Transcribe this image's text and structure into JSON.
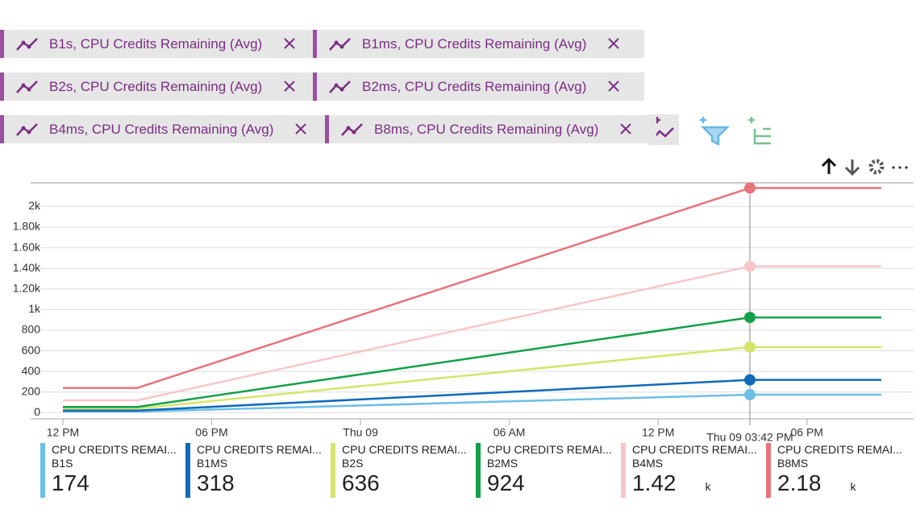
{
  "chips": [
    "B1s, CPU Credits Remaining (Avg)",
    "B1ms, CPU Credits Remaining (Avg)",
    "B2s, CPU Credits Remaining (Avg)",
    "B2ms, CPU Credits Remaining (Avg)",
    "B4ms, CPU Credits Remaining (Avg)",
    "B8ms, CPU Credits Remaining (Avg)"
  ],
  "chart_data": {
    "type": "line",
    "x": [
      0,
      3,
      27.7,
      33
    ],
    "xlim": [
      -1.3,
      34.3
    ],
    "xticks": [
      {
        "value": 0,
        "label": "12 PM"
      },
      {
        "value": 6,
        "label": "06 PM"
      },
      {
        "value": 12,
        "label": "Thu 09"
      },
      {
        "value": 18,
        "label": "06 AM"
      },
      {
        "value": 24,
        "label": "12 PM"
      },
      {
        "value": 30,
        "label": "06 PM"
      }
    ],
    "ylim": [
      -60,
      2230
    ],
    "yticks": [
      0,
      200,
      400,
      600,
      800,
      {
        "value": 1000,
        "label": "1k"
      },
      {
        "value": 1200,
        "label": "1.20k"
      },
      {
        "value": 1400,
        "label": "1.40k"
      },
      {
        "value": 1600,
        "label": "1.60k"
      },
      {
        "value": 1800,
        "label": "1.80k"
      },
      {
        "value": 2000,
        "label": "2k"
      }
    ],
    "grid": true,
    "cursor": {
      "x": 27.7,
      "label": "Thu 09 03:42 PM"
    },
    "series": [
      {
        "name": "B1S",
        "color": "#6cbfe6",
        "values": [
          10,
          10,
          174,
          174
        ]
      },
      {
        "name": "B1MS",
        "color": "#0f6ab9",
        "values": [
          20,
          20,
          318,
          318
        ]
      },
      {
        "name": "B2S",
        "color": "#d4e56a",
        "values": [
          40,
          40,
          636,
          636
        ]
      },
      {
        "name": "B2MS",
        "color": "#13a04b",
        "values": [
          55,
          55,
          924,
          924
        ]
      },
      {
        "name": "B4MS",
        "color": "#f8c6ca",
        "values": [
          120,
          120,
          1420,
          1420
        ]
      },
      {
        "name": "B8MS",
        "color": "#e8737b",
        "values": [
          240,
          240,
          2180,
          2180
        ]
      }
    ]
  },
  "legend": [
    {
      "title": "CPU CREDITS REMAI...",
      "value": "174"
    },
    {
      "title": "CPU CREDITS REMAI...",
      "value": "318"
    },
    {
      "title": "CPU CREDITS REMAI...",
      "value": "636"
    },
    {
      "title": "CPU CREDITS REMAI...",
      "value": "924"
    },
    {
      "title": "CPU CREDITS REMAI...",
      "value": "1.42",
      "unit": "k"
    },
    {
      "title": "CPU CREDITS REMAI...",
      "value": "2.18",
      "unit": "k"
    }
  ]
}
